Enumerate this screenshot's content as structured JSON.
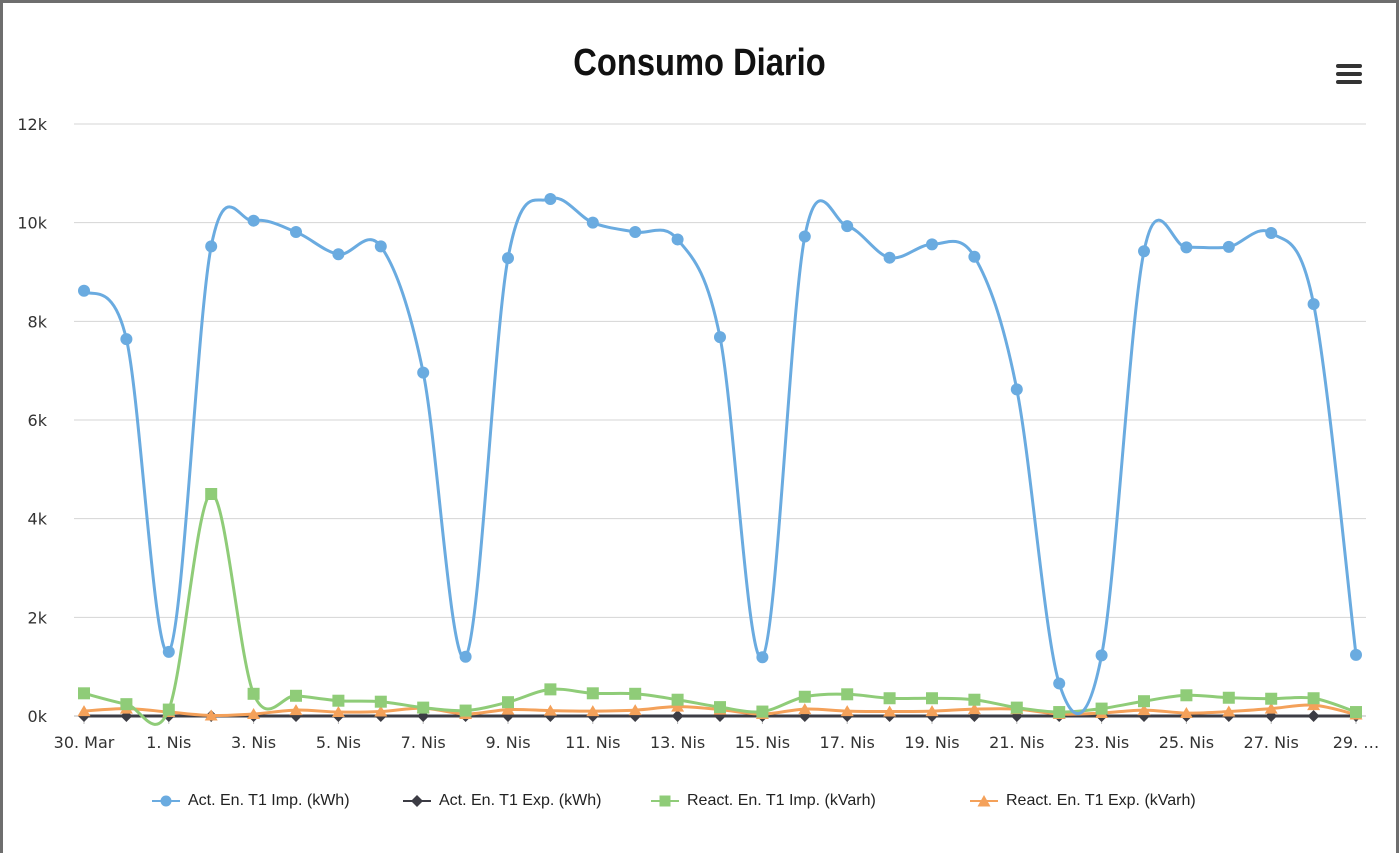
{
  "chart_data": {
    "type": "line",
    "title": "Consumo Diario",
    "xlabel": "",
    "ylabel": "",
    "ylim": [
      0,
      12000
    ],
    "yticks": [
      0,
      2000,
      4000,
      6000,
      8000,
      10000,
      12000
    ],
    "ytick_labels": [
      "0k",
      "2k",
      "4k",
      "6k",
      "8k",
      "10k",
      "12k"
    ],
    "categories": [
      "30. Mar",
      "31. Mar",
      "1. Nis",
      "2. Nis",
      "3. Nis",
      "4. Nis",
      "5. Nis",
      "6. Nis",
      "7. Nis",
      "8. Nis",
      "9. Nis",
      "10. Nis",
      "11. Nis",
      "12. Nis",
      "13. Nis",
      "14. Nis",
      "15. Nis",
      "16. Nis",
      "17. Nis",
      "18. Nis",
      "19. Nis",
      "20. Nis",
      "21. Nis",
      "22. Nis",
      "23. Nis",
      "24. Nis",
      "25. Nis",
      "26. Nis",
      "27. Nis",
      "28. Nis",
      "29. Nis"
    ],
    "xtick_labels": [
      "30. Mar",
      "1. Nis",
      "3. Nis",
      "5. Nis",
      "7. Nis",
      "9. Nis",
      "11. Nis",
      "13. Nis",
      "15. Nis",
      "17. Nis",
      "19. Nis",
      "21. Nis",
      "23. Nis",
      "25. Nis",
      "27. Nis",
      "29. …"
    ],
    "grid": true,
    "legend": "bottom",
    "series": [
      {
        "name": "Act. En. T1 Imp. (kWh)",
        "color": "#6aabe0",
        "marker": "circle",
        "values": [
          8620,
          7640,
          1300,
          9520,
          10040,
          9810,
          9360,
          9520,
          6960,
          1200,
          9280,
          10480,
          10000,
          9810,
          9660,
          7680,
          1190,
          9720,
          9930,
          9290,
          9560,
          9310,
          6620,
          660,
          1230,
          9420,
          9500,
          9510,
          9790,
          8350,
          1240
        ]
      },
      {
        "name": "Act. En. T1 Exp. (kWh)",
        "color": "#3c3c44",
        "marker": "diamond",
        "values": [
          0,
          0,
          0,
          0,
          0,
          0,
          0,
          0,
          0,
          0,
          0,
          0,
          0,
          0,
          0,
          0,
          0,
          0,
          0,
          0,
          0,
          0,
          0,
          0,
          0,
          0,
          0,
          0,
          0,
          0,
          0
        ]
      },
      {
        "name": "React. En. T1 Imp. (kVarh)",
        "color": "#8fcc78",
        "marker": "square",
        "values": [
          460,
          240,
          130,
          4500,
          450,
          410,
          310,
          290,
          170,
          110,
          280,
          540,
          460,
          450,
          330,
          180,
          90,
          390,
          440,
          360,
          360,
          330,
          170,
          80,
          150,
          300,
          420,
          370,
          350,
          360,
          80
        ]
      },
      {
        "name": "React. En. T1 Exp. (kVarh)",
        "color": "#f4a15a",
        "marker": "triangle",
        "values": [
          100,
          150,
          80,
          10,
          40,
          120,
          80,
          90,
          160,
          40,
          130,
          110,
          100,
          120,
          190,
          130,
          40,
          140,
          100,
          90,
          100,
          140,
          140,
          40,
          60,
          120,
          60,
          90,
          150,
          220,
          30
        ]
      }
    ]
  },
  "icons": {
    "menu": "hamburger-menu-icon"
  }
}
